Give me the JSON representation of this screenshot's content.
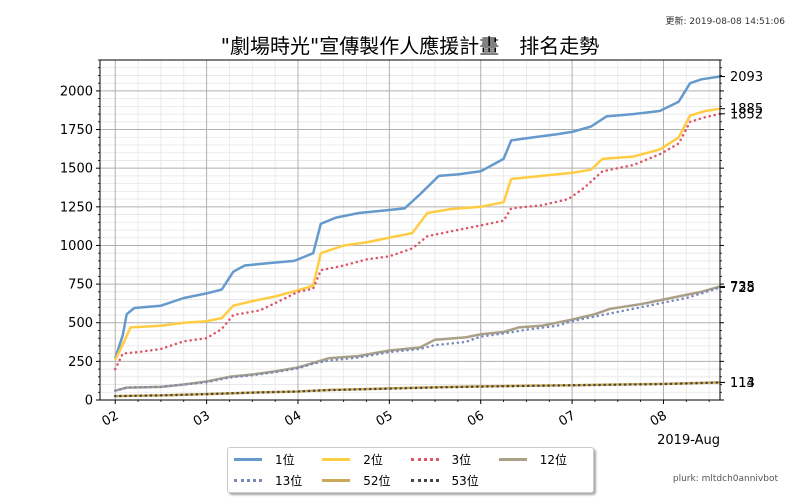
{
  "header": {
    "updated": "更新: 2019-08-08 14:51:06"
  },
  "footer": {
    "source": "plurk: mltdch0annivbot"
  },
  "chart_data": {
    "type": "line",
    "title": "\"劇場時光\"宣傳製作人應援計畫　排名走勢",
    "xlabel": "2019-Aug",
    "ylabel": "",
    "xlim": [
      "2019-08-01 20:00",
      "2019-08-08 14:51"
    ],
    "ylim": [
      0,
      2200
    ],
    "yticks": [
      0,
      250,
      500,
      750,
      1000,
      1250,
      1500,
      1750,
      2000
    ],
    "xticks": [
      {
        "date": "2019-08-02 00:00",
        "label": "02"
      },
      {
        "date": "2019-08-03 00:00",
        "label": "03"
      },
      {
        "date": "2019-08-04 00:00",
        "label": "04"
      },
      {
        "date": "2019-08-05 00:00",
        "label": "05"
      },
      {
        "date": "2019-08-06 00:00",
        "label": "06"
      },
      {
        "date": "2019-08-07 00:00",
        "label": "07"
      },
      {
        "date": "2019-08-08 00:00",
        "label": "08"
      }
    ],
    "grid": true,
    "minor_grid": true,
    "legend_position": "bottom-center",
    "end_labels": [
      {
        "series": "1位",
        "label": "2093"
      },
      {
        "series": "2位",
        "label": "1885"
      },
      {
        "series": "3位",
        "label": "1852"
      },
      {
        "series": "12位",
        "label": "735"
      },
      {
        "series": "13位",
        "label": "728"
      },
      {
        "series": "52位",
        "label": "114"
      },
      {
        "series": "53位",
        "label": "113"
      }
    ],
    "series": [
      {
        "name": "1位",
        "color": "#6699cc",
        "dash": "solid",
        "points": [
          [
            "2019-08-02 00:00",
            270
          ],
          [
            "2019-08-02 02:00",
            420
          ],
          [
            "2019-08-02 03:00",
            555
          ],
          [
            "2019-08-02 05:00",
            595
          ],
          [
            "2019-08-02 12:00",
            610
          ],
          [
            "2019-08-02 18:00",
            660
          ],
          [
            "2019-08-03 00:00",
            690
          ],
          [
            "2019-08-03 04:00",
            715
          ],
          [
            "2019-08-03 07:00",
            830
          ],
          [
            "2019-08-03 10:00",
            870
          ],
          [
            "2019-08-03 16:00",
            885
          ],
          [
            "2019-08-03 23:00",
            900
          ],
          [
            "2019-08-04 04:00",
            950
          ],
          [
            "2019-08-04 06:00",
            1140
          ],
          [
            "2019-08-04 10:00",
            1180
          ],
          [
            "2019-08-04 16:00",
            1210
          ],
          [
            "2019-08-04 22:00",
            1225
          ],
          [
            "2019-08-05 04:00",
            1240
          ],
          [
            "2019-08-05 08:00",
            1330
          ],
          [
            "2019-08-05 13:00",
            1450
          ],
          [
            "2019-08-05 18:00",
            1460
          ],
          [
            "2019-08-06 00:00",
            1480
          ],
          [
            "2019-08-06 06:00",
            1560
          ],
          [
            "2019-08-06 08:00",
            1680
          ],
          [
            "2019-08-06 14:00",
            1700
          ],
          [
            "2019-08-06 20:00",
            1720
          ],
          [
            "2019-08-07 00:00",
            1735
          ],
          [
            "2019-08-07 05:00",
            1770
          ],
          [
            "2019-08-07 09:00",
            1835
          ],
          [
            "2019-08-07 16:00",
            1850
          ],
          [
            "2019-08-07 23:00",
            1870
          ],
          [
            "2019-08-08 04:00",
            1930
          ],
          [
            "2019-08-08 07:00",
            2050
          ],
          [
            "2019-08-08 10:00",
            2075
          ],
          [
            "2019-08-08 14:51",
            2093
          ]
        ]
      },
      {
        "name": "2位",
        "color": "#ffcc44",
        "dash": "solid",
        "points": [
          [
            "2019-08-02 00:00",
            260
          ],
          [
            "2019-08-02 02:00",
            360
          ],
          [
            "2019-08-02 04:00",
            470
          ],
          [
            "2019-08-02 12:00",
            480
          ],
          [
            "2019-08-02 18:00",
            500
          ],
          [
            "2019-08-03 00:00",
            510
          ],
          [
            "2019-08-03 04:00",
            530
          ],
          [
            "2019-08-03 07:00",
            610
          ],
          [
            "2019-08-03 12:00",
            640
          ],
          [
            "2019-08-03 18:00",
            670
          ],
          [
            "2019-08-04 00:00",
            710
          ],
          [
            "2019-08-04 04:00",
            740
          ],
          [
            "2019-08-04 06:00",
            950
          ],
          [
            "2019-08-04 12:00",
            1000
          ],
          [
            "2019-08-04 18:00",
            1020
          ],
          [
            "2019-08-05 00:00",
            1050
          ],
          [
            "2019-08-05 06:00",
            1080
          ],
          [
            "2019-08-05 10:00",
            1210
          ],
          [
            "2019-08-05 16:00",
            1235
          ],
          [
            "2019-08-06 00:00",
            1250
          ],
          [
            "2019-08-06 06:00",
            1280
          ],
          [
            "2019-08-06 08:00",
            1430
          ],
          [
            "2019-08-06 16:00",
            1450
          ],
          [
            "2019-08-07 00:00",
            1470
          ],
          [
            "2019-08-07 05:00",
            1490
          ],
          [
            "2019-08-07 08:00",
            1560
          ],
          [
            "2019-08-07 16:00",
            1575
          ],
          [
            "2019-08-07 23:00",
            1620
          ],
          [
            "2019-08-08 04:00",
            1700
          ],
          [
            "2019-08-08 07:00",
            1840
          ],
          [
            "2019-08-08 11:00",
            1870
          ],
          [
            "2019-08-08 14:51",
            1885
          ]
        ]
      },
      {
        "name": "3位",
        "color": "#dd5566",
        "dash": "dotted",
        "points": [
          [
            "2019-08-02 00:00",
            200
          ],
          [
            "2019-08-02 02:00",
            300
          ],
          [
            "2019-08-02 06:00",
            310
          ],
          [
            "2019-08-02 12:00",
            330
          ],
          [
            "2019-08-02 18:00",
            380
          ],
          [
            "2019-08-03 00:00",
            400
          ],
          [
            "2019-08-03 04:00",
            460
          ],
          [
            "2019-08-03 07:00",
            550
          ],
          [
            "2019-08-03 14:00",
            580
          ],
          [
            "2019-08-03 20:00",
            650
          ],
          [
            "2019-08-04 00:00",
            700
          ],
          [
            "2019-08-04 04:00",
            720
          ],
          [
            "2019-08-04 06:00",
            840
          ],
          [
            "2019-08-04 12:00",
            870
          ],
          [
            "2019-08-04 18:00",
            910
          ],
          [
            "2019-08-05 00:00",
            930
          ],
          [
            "2019-08-05 06:00",
            980
          ],
          [
            "2019-08-05 10:00",
            1060
          ],
          [
            "2019-08-05 16:00",
            1090
          ],
          [
            "2019-08-06 00:00",
            1130
          ],
          [
            "2019-08-06 06:00",
            1160
          ],
          [
            "2019-08-06 08:00",
            1240
          ],
          [
            "2019-08-06 16:00",
            1260
          ],
          [
            "2019-08-06 23:00",
            1300
          ],
          [
            "2019-08-07 03:00",
            1370
          ],
          [
            "2019-08-07 08:00",
            1480
          ],
          [
            "2019-08-07 16:00",
            1520
          ],
          [
            "2019-08-07 23:00",
            1590
          ],
          [
            "2019-08-08 04:00",
            1660
          ],
          [
            "2019-08-08 07:00",
            1800
          ],
          [
            "2019-08-08 11:00",
            1830
          ],
          [
            "2019-08-08 14:51",
            1852
          ]
        ]
      },
      {
        "name": "12位",
        "color": "#aaa088",
        "dash": "solid",
        "points": [
          [
            "2019-08-02 00:00",
            60
          ],
          [
            "2019-08-02 03:00",
            80
          ],
          [
            "2019-08-02 12:00",
            85
          ],
          [
            "2019-08-02 18:00",
            100
          ],
          [
            "2019-08-03 00:00",
            120
          ],
          [
            "2019-08-03 06:00",
            150
          ],
          [
            "2019-08-03 12:00",
            165
          ],
          [
            "2019-08-03 18:00",
            185
          ],
          [
            "2019-08-04 00:00",
            210
          ],
          [
            "2019-08-04 04:00",
            240
          ],
          [
            "2019-08-04 08:00",
            270
          ],
          [
            "2019-08-04 16:00",
            285
          ],
          [
            "2019-08-05 00:00",
            320
          ],
          [
            "2019-08-05 08:00",
            340
          ],
          [
            "2019-08-05 12:00",
            390
          ],
          [
            "2019-08-05 20:00",
            405
          ],
          [
            "2019-08-06 00:00",
            425
          ],
          [
            "2019-08-06 06:00",
            440
          ],
          [
            "2019-08-06 10:00",
            470
          ],
          [
            "2019-08-06 16:00",
            480
          ],
          [
            "2019-08-07 00:00",
            520
          ],
          [
            "2019-08-07 06:00",
            555
          ],
          [
            "2019-08-07 10:00",
            590
          ],
          [
            "2019-08-07 18:00",
            620
          ],
          [
            "2019-08-08 00:00",
            650
          ],
          [
            "2019-08-08 06:00",
            680
          ],
          [
            "2019-08-08 10:00",
            700
          ],
          [
            "2019-08-08 14:51",
            735
          ]
        ]
      },
      {
        "name": "13位",
        "color": "#7788bb",
        "dash": "dotted",
        "points": [
          [
            "2019-08-02 00:00",
            60
          ],
          [
            "2019-08-02 03:00",
            80
          ],
          [
            "2019-08-02 12:00",
            85
          ],
          [
            "2019-08-02 18:00",
            100
          ],
          [
            "2019-08-03 00:00",
            115
          ],
          [
            "2019-08-03 06:00",
            145
          ],
          [
            "2019-08-03 12:00",
            160
          ],
          [
            "2019-08-03 18:00",
            180
          ],
          [
            "2019-08-04 00:00",
            205
          ],
          [
            "2019-08-04 04:00",
            235
          ],
          [
            "2019-08-04 08:00",
            255
          ],
          [
            "2019-08-04 16:00",
            275
          ],
          [
            "2019-08-05 00:00",
            310
          ],
          [
            "2019-08-05 08:00",
            330
          ],
          [
            "2019-08-05 12:00",
            355
          ],
          [
            "2019-08-05 20:00",
            375
          ],
          [
            "2019-08-06 00:00",
            410
          ],
          [
            "2019-08-06 06:00",
            430
          ],
          [
            "2019-08-06 12:00",
            455
          ],
          [
            "2019-08-06 20:00",
            480
          ],
          [
            "2019-08-07 00:00",
            510
          ],
          [
            "2019-08-07 06:00",
            540
          ],
          [
            "2019-08-07 12:00",
            570
          ],
          [
            "2019-08-07 18:00",
            600
          ],
          [
            "2019-08-08 00:00",
            630
          ],
          [
            "2019-08-08 06:00",
            660
          ],
          [
            "2019-08-08 10:00",
            690
          ],
          [
            "2019-08-08 14:51",
            728
          ]
        ]
      },
      {
        "name": "52位",
        "color": "#ccaa55",
        "dash": "solid",
        "points": [
          [
            "2019-08-02 00:00",
            25
          ],
          [
            "2019-08-02 12:00",
            30
          ],
          [
            "2019-08-03 00:00",
            38
          ],
          [
            "2019-08-03 12:00",
            48
          ],
          [
            "2019-08-04 00:00",
            55
          ],
          [
            "2019-08-04 08:00",
            65
          ],
          [
            "2019-08-05 00:00",
            75
          ],
          [
            "2019-08-05 12:00",
            82
          ],
          [
            "2019-08-06 00:00",
            88
          ],
          [
            "2019-08-06 12:00",
            92
          ],
          [
            "2019-08-07 00:00",
            96
          ],
          [
            "2019-08-07 12:00",
            100
          ],
          [
            "2019-08-08 00:00",
            104
          ],
          [
            "2019-08-08 14:51",
            114
          ]
        ]
      },
      {
        "name": "53位",
        "color": "#444444",
        "dash": "dotted",
        "points": [
          [
            "2019-08-02 00:00",
            25
          ],
          [
            "2019-08-02 12:00",
            30
          ],
          [
            "2019-08-03 00:00",
            38
          ],
          [
            "2019-08-03 12:00",
            48
          ],
          [
            "2019-08-04 00:00",
            55
          ],
          [
            "2019-08-04 08:00",
            64
          ],
          [
            "2019-08-05 00:00",
            74
          ],
          [
            "2019-08-05 12:00",
            81
          ],
          [
            "2019-08-06 00:00",
            87
          ],
          [
            "2019-08-06 12:00",
            91
          ],
          [
            "2019-08-07 00:00",
            95
          ],
          [
            "2019-08-07 12:00",
            99
          ],
          [
            "2019-08-08 00:00",
            103
          ],
          [
            "2019-08-08 14:51",
            113
          ]
        ]
      }
    ]
  }
}
